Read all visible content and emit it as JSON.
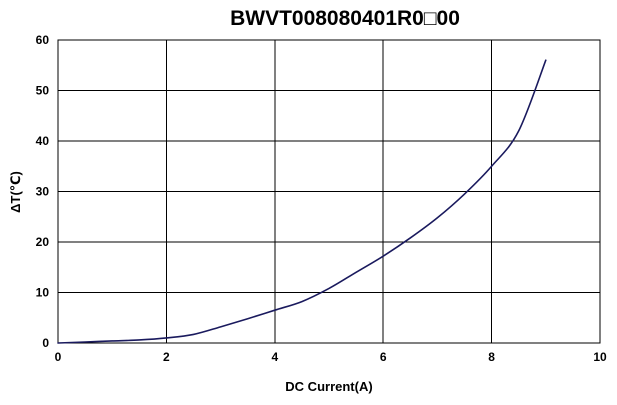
{
  "chart_data": {
    "type": "line",
    "title": "BWVT008080401R0□00",
    "xlabel": "DC Current(A)",
    "ylabel": "ΔT(℃)",
    "xlim": [
      0,
      10
    ],
    "ylim": [
      0,
      60
    ],
    "x_ticks": [
      0,
      2,
      4,
      6,
      8,
      10
    ],
    "y_ticks": [
      0,
      10,
      20,
      30,
      40,
      50,
      60
    ],
    "grid": true,
    "colors": {
      "line": "#1a1a5e",
      "grid": "#000000"
    },
    "series": [
      {
        "x": [
          0,
          0.5,
          1,
          1.5,
          2,
          2.5,
          3,
          3.5,
          4,
          4.5,
          5,
          5.5,
          6,
          6.5,
          7,
          7.5,
          8,
          8.5,
          9
        ],
        "y": [
          0,
          0.2,
          0.4,
          0.6,
          1.0,
          1.7,
          3.2,
          4.8,
          6.5,
          8.2,
          10.8,
          14.0,
          17.2,
          20.8,
          24.8,
          29.5,
          35.0,
          42.0,
          56.0
        ]
      }
    ]
  }
}
